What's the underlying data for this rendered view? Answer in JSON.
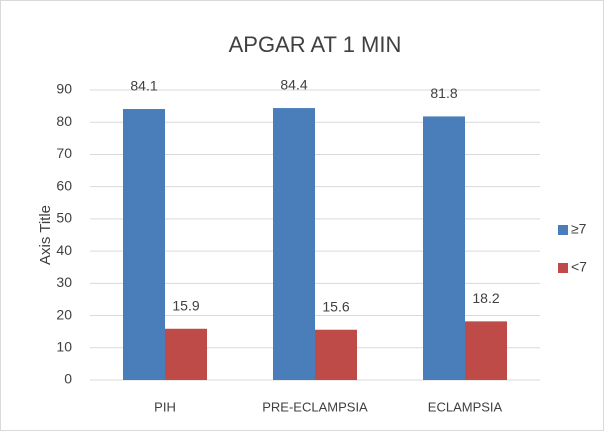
{
  "chart_data": {
    "type": "bar",
    "title": "APGAR AT 1 MIN",
    "y_axis_title": "Axis Title",
    "categories": [
      "PIH",
      "PRE-ECLAMPSIA",
      "ECLAMPSIA"
    ],
    "series": [
      {
        "name": "≥7",
        "color": "#4a7ebb",
        "values": [
          84.1,
          84.4,
          81.8
        ]
      },
      {
        "name": "<7",
        "color": "#be4b48",
        "values": [
          15.9,
          15.6,
          18.2
        ]
      }
    ],
    "ylim": [
      0,
      90
    ],
    "yticks": [
      0,
      10,
      20,
      30,
      40,
      50,
      60,
      70,
      80,
      90
    ],
    "grid": true,
    "legend": "right"
  }
}
